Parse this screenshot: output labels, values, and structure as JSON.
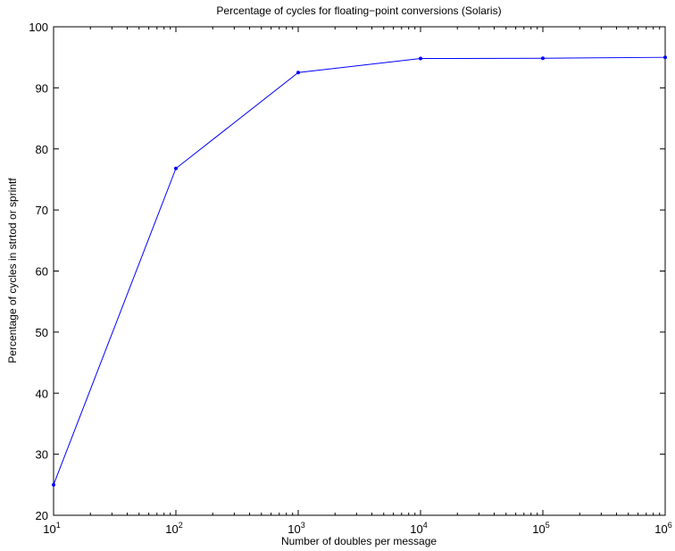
{
  "chart_data": {
    "type": "line",
    "title": "Percentage of cycles for floating−point conversions (Solaris)",
    "xlabel": "Number of doubles per message",
    "ylabel": "Percentage of cycles in strtod or sprintf",
    "xscale": "log",
    "xlim": [
      10,
      1000000
    ],
    "ylim": [
      20,
      100
    ],
    "grid": false,
    "line_color": "#0000ff",
    "x": [
      10,
      100,
      1000,
      10000,
      100000,
      1000000
    ],
    "series": [
      {
        "values": [
          25.0,
          76.8,
          92.5,
          94.8,
          94.85,
          95.0
        ]
      }
    ],
    "x_ticks": [
      {
        "base": "10",
        "exp": "1"
      },
      {
        "base": "10",
        "exp": "2"
      },
      {
        "base": "10",
        "exp": "3"
      },
      {
        "base": "10",
        "exp": "4"
      },
      {
        "base": "10",
        "exp": "5"
      },
      {
        "base": "10",
        "exp": "6"
      }
    ],
    "y_ticks": [
      "20",
      "30",
      "40",
      "50",
      "60",
      "70",
      "80",
      "90",
      "100"
    ]
  }
}
